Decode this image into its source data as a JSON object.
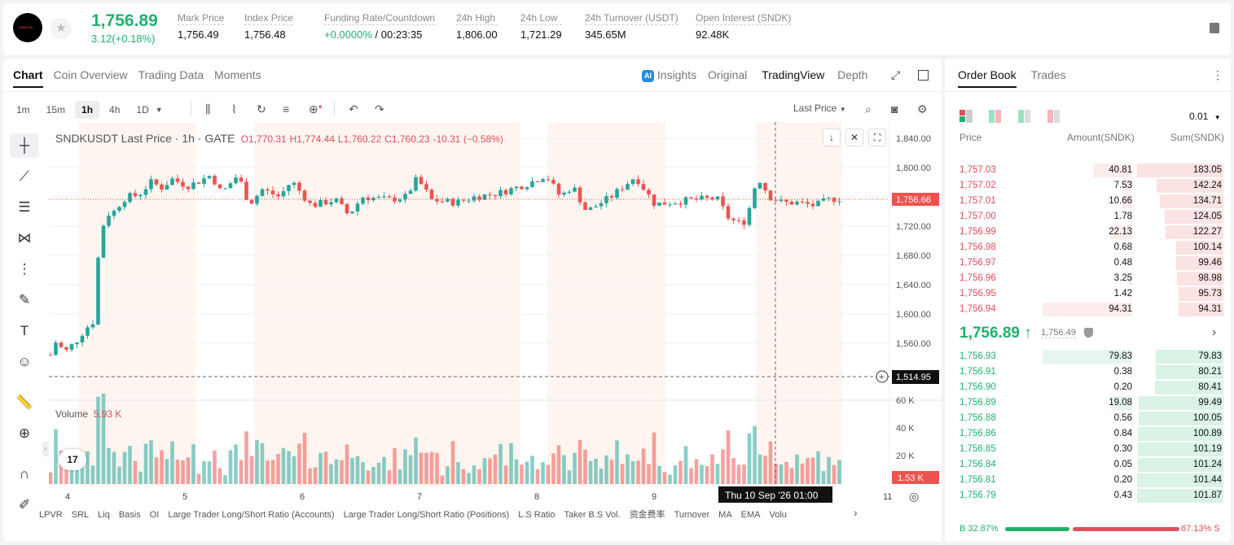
{
  "header": {
    "price": "1,756.89",
    "change": "3.12(+0.18%)",
    "logo_text": "SANDISK",
    "stats": [
      {
        "label": "Mark Price",
        "value": "1,756.49"
      },
      {
        "label": "Index Price",
        "value": "1,756.48"
      },
      {
        "label": "Funding Rate/Countdown",
        "value_green": "+0.0000%",
        "value": " / 00:23:35"
      },
      {
        "label": "24h High",
        "value": "1,806.00"
      },
      {
        "label": "24h Low",
        "value": "1,721.29"
      },
      {
        "label": "24h Turnover (USDT)",
        "value": "345.65M"
      },
      {
        "label": "Open Interest (SNDK)",
        "value": "92.48K"
      }
    ]
  },
  "tabs": [
    "Chart",
    "Coin Overview",
    "Trading Data",
    "Moments"
  ],
  "right_tabs": {
    "ai": "AI",
    "insights": "Insights",
    "original": "Original",
    "tradingview": "TradingView",
    "depth": "Depth"
  },
  "timeframes": [
    "1m",
    "15m",
    "1h",
    "4h",
    "1D"
  ],
  "last_price_select": "Last Price",
  "ohlc": {
    "symbol": "SNDKUSDT Last Price · 1h · GATE",
    "o": "O1,770.31",
    "h": "H1,774.44",
    "l": "L1,760.22",
    "c": "C1,760.23",
    "chg": "-10.31 (−0.58%)"
  },
  "volume": {
    "label": "Volume",
    "value": "5.93 K"
  },
  "indicators": [
    "LPVR",
    "SRL",
    "Liq",
    "Basis",
    "OI",
    "Large Trader Long/Short Ratio (Accounts)",
    "Large Trader Long/Short Ratio (Positions)",
    "L.S Ratio",
    "Taker B.S Vol.",
    "资金费率",
    "Turnover",
    "MA",
    "EMA",
    "Volu"
  ],
  "tv_logo": "17",
  "chart_data": {
    "type": "candlestick",
    "price_ticks": [
      "1,840.00",
      "1,800.00",
      "1,760.00",
      "1,720.00",
      "1,680.00",
      "1,640.00",
      "1,600.00",
      "1,560.00"
    ],
    "volume_ticks": [
      "60 K",
      "40 K",
      "20 K"
    ],
    "x_ticks": [
      "4",
      "5",
      "6",
      "7",
      "8",
      "9",
      "11"
    ],
    "last_price_label": "1,756.66",
    "crosshair_price": "1,514.95",
    "crosshair_time": "Thu 10 Sep '26   01:00",
    "volume_last": "1.53 K",
    "colors": {
      "up": "#26a69a",
      "down": "#ef5350"
    },
    "ylim": [
      1500,
      1850
    ]
  },
  "orderbook": {
    "tabs": [
      "Order Book",
      "Trades"
    ],
    "tick": "0.01",
    "cols": [
      "Price",
      "Amount(SNDK)",
      "Sum(SNDK)"
    ],
    "asks": [
      [
        "1,757.03",
        "40.81",
        "183.05"
      ],
      [
        "1,757.02",
        "7.53",
        "142.24"
      ],
      [
        "1,757.01",
        "10.66",
        "134.71"
      ],
      [
        "1,757.00",
        "1.78",
        "124.05"
      ],
      [
        "1,756.99",
        "22.13",
        "122.27"
      ],
      [
        "1,756.98",
        "0.68",
        "100.14"
      ],
      [
        "1,756.97",
        "0.48",
        "99.46"
      ],
      [
        "1,756.96",
        "3.25",
        "98.98"
      ],
      [
        "1,756.95",
        "1.42",
        "95.73"
      ],
      [
        "1,756.94",
        "94.31",
        "94.31"
      ]
    ],
    "mid": "1,756.89 ↑",
    "mark": "1,756.49",
    "bids": [
      [
        "1,756.93",
        "79.83",
        "79.83"
      ],
      [
        "1,756.91",
        "0.38",
        "80.21"
      ],
      [
        "1,756.90",
        "0.20",
        "80.41"
      ],
      [
        "1,756.89",
        "19.08",
        "99.49"
      ],
      [
        "1,756.88",
        "0.56",
        "100.05"
      ],
      [
        "1,756.86",
        "0.84",
        "100.89"
      ],
      [
        "1,756.85",
        "0.30",
        "101.19"
      ],
      [
        "1,756.84",
        "0.05",
        "101.24"
      ],
      [
        "1,756.81",
        "0.20",
        "101.44"
      ],
      [
        "1,756.79",
        "0.43",
        "101.87"
      ]
    ],
    "buy": "B 32.87%",
    "sell": "67.13% S",
    "buy_ratio": 0.3287
  }
}
